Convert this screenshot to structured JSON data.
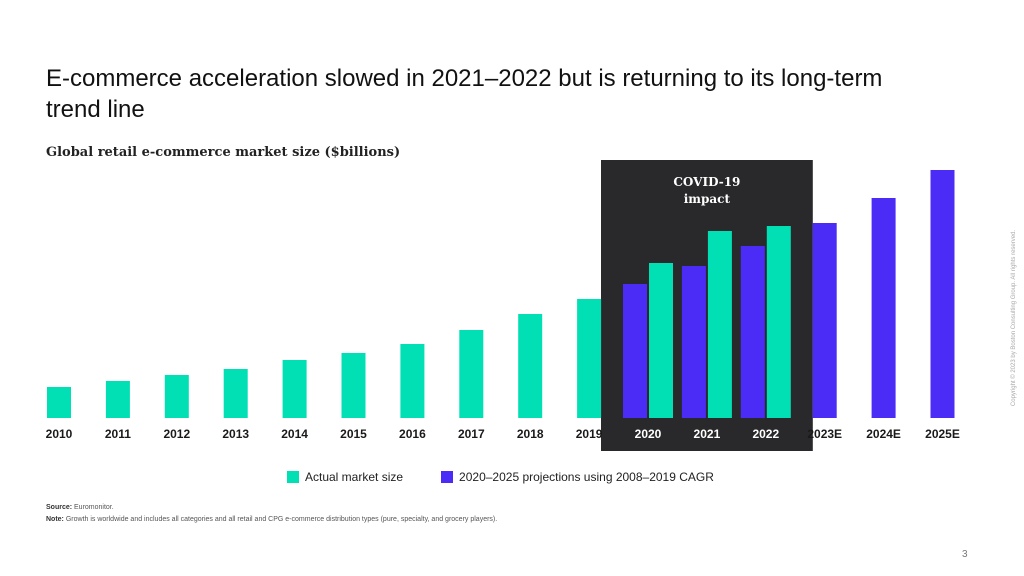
{
  "slide": {
    "title": "E-commerce acceleration slowed in 2021–2022 but is returning to its long-term trend line",
    "subtitle": "Global retail e-commerce market size ($billions)",
    "source_label": "Source:",
    "source_text": "Euromonitor.",
    "note_label": "Note:",
    "note_text": "Growth is worldwide and includes all categories and all retail and CPG e-commerce distribution types (pure, specialty, and grocery players).",
    "copyright": "Copyright © 2023 by Boston Consulting Group. All rights reserved.",
    "page_number": "3"
  },
  "colors": {
    "actual": "#00e0b4",
    "projection": "#4b2cf7",
    "covid_box": "#29292b",
    "covid_text": "#ffffff",
    "axis_text": "#1a1a1a",
    "covid_axis_text": "#ffffff"
  },
  "chart_data": {
    "type": "bar",
    "title": "Global retail e-commerce market size ($billions)",
    "xlabel": "",
    "ylabel": "",
    "ylim": [
      0,
      250
    ],
    "categories": [
      "2010",
      "2011",
      "2012",
      "2013",
      "2014",
      "2015",
      "2016",
      "2017",
      "2018",
      "2019",
      "2020",
      "2021",
      "2022",
      "2023E",
      "2024E",
      "2025E"
    ],
    "series": [
      {
        "name": "Actual market size",
        "color_key": "actual",
        "values": [
          31,
          37,
          43,
          49,
          58,
          65,
          74,
          88,
          104,
          119,
          155,
          187,
          192,
          null,
          null,
          null
        ]
      },
      {
        "name": "2020–2025 projections using 2008–2019 CAGR",
        "color_key": "projection",
        "values": [
          null,
          null,
          null,
          null,
          null,
          null,
          null,
          null,
          null,
          null,
          134,
          152,
          172,
          195,
          220,
          248
        ]
      }
    ],
    "annotation": {
      "label_line1": "COVID-19",
      "label_line2": "impact",
      "categories": [
        "2020",
        "2021",
        "2022"
      ]
    },
    "legend_position": "bottom-center"
  }
}
